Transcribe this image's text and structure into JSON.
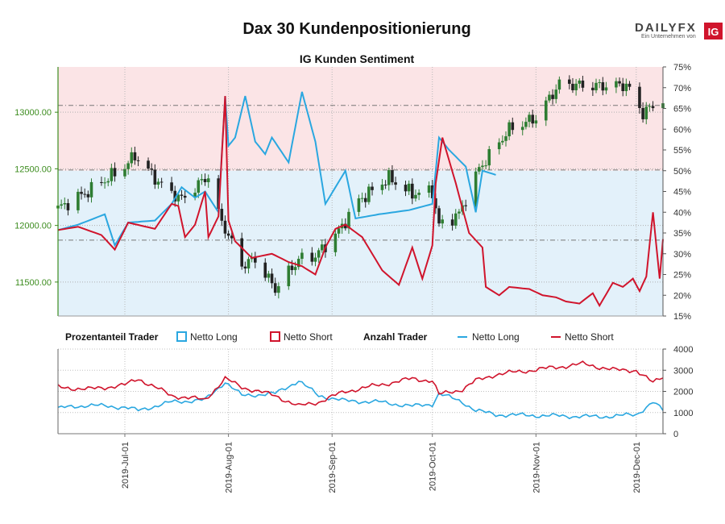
{
  "header": {
    "title": "Dax 30 Kundenpositionierung",
    "brand_name": "DAILYFX",
    "brand_sub": "Ein Unternehmen von",
    "brand_badge": "IG"
  },
  "colors": {
    "long": "#2aa7e0",
    "short": "#d0142c",
    "up_candle": "#2e7d32",
    "down_candle": "#222222",
    "left_axis": "#3c8c1e",
    "bg_short": "#fbe4e6",
    "bg_long": "#e3f1fa"
  },
  "chart_data": [
    {
      "type": "candlestick",
      "title": "IG Kunden Sentiment",
      "ylim_price": [
        11200,
        13400
      ],
      "ylim_percent": [
        15,
        75
      ],
      "price_ticks": [
        "11500.00",
        "12000.00",
        "12500.00",
        "13000.00"
      ],
      "price_tick_values": [
        11500,
        12000,
        12500,
        13000
      ],
      "percent_ticks": [
        "15%",
        "20%",
        "25%",
        "30%",
        "35%",
        "40%",
        "45%",
        "50%",
        "55%",
        "60%",
        "65%",
        "70%",
        "75%"
      ],
      "percent_tick_values": [
        15,
        20,
        25,
        30,
        35,
        40,
        45,
        50,
        55,
        60,
        65,
        70,
        75
      ],
      "dashed_levels_price": [
        12490,
        13060,
        11870
      ],
      "x_start": "2019-06-11",
      "x_end": "2019-12-09",
      "close_anchors": [
        [
          "2019-06-11",
          12150
        ],
        [
          "2019-06-20",
          12300
        ],
        [
          "2019-07-01",
          12520
        ],
        [
          "2019-07-04",
          12620
        ],
        [
          "2019-07-12",
          12350
        ],
        [
          "2019-07-18",
          12230
        ],
        [
          "2019-07-26",
          12440
        ],
        [
          "2019-07-29",
          12100
        ],
        [
          "2019-08-05",
          11650
        ],
        [
          "2019-08-09",
          11700
        ],
        [
          "2019-08-15",
          11440
        ],
        [
          "2019-08-22",
          11700
        ],
        [
          "2019-08-27",
          11730
        ],
        [
          "2019-09-03",
          11950
        ],
        [
          "2019-09-09",
          12220
        ],
        [
          "2019-09-18",
          12420
        ],
        [
          "2019-09-25",
          12280
        ],
        [
          "2019-10-01",
          12300
        ],
        [
          "2019-10-03",
          12000
        ],
        [
          "2019-10-09",
          12100
        ],
        [
          "2019-10-15",
          12500
        ],
        [
          "2019-10-24",
          12850
        ],
        [
          "2019-11-01",
          12950
        ],
        [
          "2019-11-08",
          13250
        ],
        [
          "2019-11-18",
          13230
        ],
        [
          "2019-11-28",
          13240
        ],
        [
          "2019-12-03",
          12990
        ],
        [
          "2019-12-09",
          13120
        ]
      ],
      "percent_long_anchors": [
        [
          "2019-06-11",
          35.7
        ],
        [
          "2019-06-17",
          37.0
        ],
        [
          "2019-06-25",
          39.5
        ],
        [
          "2019-06-28",
          32.0
        ],
        [
          "2019-07-02",
          37.5
        ],
        [
          "2019-07-10",
          38.0
        ],
        [
          "2019-07-15",
          42.0
        ],
        [
          "2019-07-18",
          46.0
        ],
        [
          "2019-07-22",
          43.5
        ],
        [
          "2019-07-25",
          45.0
        ],
        [
          "2019-07-29",
          40.0
        ],
        [
          "2019-07-31",
          68.0
        ],
        [
          "2019-08-01",
          56.0
        ],
        [
          "2019-08-03",
          58.0
        ],
        [
          "2019-08-06",
          68.0
        ],
        [
          "2019-08-09",
          57.0
        ],
        [
          "2019-08-12",
          54.0
        ],
        [
          "2019-08-14",
          58.0
        ],
        [
          "2019-08-19",
          52.0
        ],
        [
          "2019-08-23",
          69.0
        ],
        [
          "2019-08-27",
          57.0
        ],
        [
          "2019-08-30",
          42.0
        ],
        [
          "2019-09-02",
          46.0
        ],
        [
          "2019-09-05",
          50.0
        ],
        [
          "2019-09-08",
          38.5
        ],
        [
          "2019-09-15",
          39.5
        ],
        [
          "2019-09-24",
          40.5
        ],
        [
          "2019-10-01",
          42.0
        ],
        [
          "2019-10-03",
          58.0
        ],
        [
          "2019-10-06",
          55.0
        ],
        [
          "2019-10-11",
          51.0
        ],
        [
          "2019-10-14",
          40.0
        ],
        [
          "2019-10-16",
          50.0
        ],
        [
          "2019-10-20",
          49.0
        ]
      ],
      "percent_short_anchors": [
        [
          "2019-06-11",
          35.7
        ],
        [
          "2019-06-17",
          36.5
        ],
        [
          "2019-06-24",
          34.5
        ],
        [
          "2019-06-28",
          31.0
        ],
        [
          "2019-07-02",
          37.5
        ],
        [
          "2019-07-10",
          36.0
        ],
        [
          "2019-07-15",
          42.0
        ],
        [
          "2019-07-17",
          41.5
        ],
        [
          "2019-07-19",
          34.0
        ],
        [
          "2019-07-22",
          37.0
        ],
        [
          "2019-07-25",
          45.0
        ],
        [
          "2019-07-26",
          34.0
        ],
        [
          "2019-07-29",
          39.0
        ],
        [
          "2019-07-31",
          68.0
        ],
        [
          "2019-08-01",
          38.0
        ],
        [
          "2019-08-03",
          33.0
        ],
        [
          "2019-08-08",
          29.0
        ],
        [
          "2019-08-14",
          30.0
        ],
        [
          "2019-08-19",
          28.0
        ],
        [
          "2019-08-23",
          27.0
        ],
        [
          "2019-08-27",
          25.0
        ],
        [
          "2019-08-30",
          31.5
        ],
        [
          "2019-09-02",
          36.0
        ],
        [
          "2019-09-05",
          37.0
        ],
        [
          "2019-09-10",
          34.0
        ],
        [
          "2019-09-16",
          26.0
        ],
        [
          "2019-09-21",
          22.5
        ],
        [
          "2019-09-25",
          31.5
        ],
        [
          "2019-09-28",
          24.0
        ],
        [
          "2019-10-01",
          32.0
        ],
        [
          "2019-10-02",
          47.0
        ],
        [
          "2019-10-04",
          58.0
        ],
        [
          "2019-10-08",
          47.0
        ],
        [
          "2019-10-12",
          35.0
        ],
        [
          "2019-10-16",
          31.5
        ],
        [
          "2019-10-17",
          22.0
        ],
        [
          "2019-10-21",
          20.0
        ],
        [
          "2019-10-24",
          22.0
        ],
        [
          "2019-10-30",
          21.5
        ],
        [
          "2019-11-03",
          20.0
        ],
        [
          "2019-11-07",
          19.5
        ],
        [
          "2019-11-10",
          18.5
        ],
        [
          "2019-11-14",
          18.0
        ],
        [
          "2019-11-18",
          20.5
        ],
        [
          "2019-11-20",
          17.5
        ],
        [
          "2019-11-24",
          23.0
        ],
        [
          "2019-11-27",
          22.0
        ],
        [
          "2019-11-30",
          24.0
        ],
        [
          "2019-12-02",
          21.0
        ],
        [
          "2019-12-04",
          24.5
        ],
        [
          "2019-12-06",
          40.0
        ],
        [
          "2019-12-08",
          24.0
        ],
        [
          "2019-12-09",
          33.5
        ]
      ]
    },
    {
      "type": "line",
      "legend": [
        {
          "group": "Prozentanteil Trader",
          "items": [
            "Netto Long",
            "Netto Short"
          ],
          "style": "box"
        },
        {
          "group": "Anzahl Trader",
          "items": [
            "Netto Long",
            "Netto Short"
          ],
          "style": "line"
        }
      ],
      "ylim": [
        0,
        4000
      ],
      "y_ticks": [
        "0",
        "1000",
        "2000",
        "3000",
        "4000"
      ],
      "y_tick_values": [
        0,
        1000,
        2000,
        3000,
        4000
      ],
      "x_tick_labels": [
        "2019-Jul-01",
        "2019-Aug-01",
        "2019-Sep-01",
        "2019-Oct-01",
        "2019-Nov-01",
        "2019-Dec-01"
      ],
      "x_tick_dates": [
        "2019-07-01",
        "2019-08-01",
        "2019-09-01",
        "2019-10-01",
        "2019-11-01",
        "2019-12-01"
      ],
      "long_anchors": [
        [
          "2019-06-11",
          1200
        ],
        [
          "2019-06-20",
          1350
        ],
        [
          "2019-07-01",
          1250
        ],
        [
          "2019-07-05",
          1100
        ],
        [
          "2019-07-15",
          1500
        ],
        [
          "2019-07-25",
          1600
        ],
        [
          "2019-07-31",
          2450
        ],
        [
          "2019-08-05",
          1800
        ],
        [
          "2019-08-15",
          1900
        ],
        [
          "2019-08-22",
          2500
        ],
        [
          "2019-08-28",
          1800
        ],
        [
          "2019-09-05",
          1550
        ],
        [
          "2019-09-15",
          1500
        ],
        [
          "2019-09-25",
          1300
        ],
        [
          "2019-10-01",
          1400
        ],
        [
          "2019-10-03",
          1900
        ],
        [
          "2019-10-10",
          1500
        ],
        [
          "2019-10-14",
          1100
        ],
        [
          "2019-10-20",
          900
        ],
        [
          "2019-11-05",
          850
        ],
        [
          "2019-11-20",
          800
        ],
        [
          "2019-12-01",
          900
        ],
        [
          "2019-12-06",
          1500
        ],
        [
          "2019-12-09",
          1100
        ]
      ],
      "short_anchors": [
        [
          "2019-06-11",
          2200
        ],
        [
          "2019-06-20",
          2100
        ],
        [
          "2019-07-01",
          2300
        ],
        [
          "2019-07-05",
          2600
        ],
        [
          "2019-07-15",
          1800
        ],
        [
          "2019-07-25",
          1600
        ],
        [
          "2019-07-31",
          2600
        ],
        [
          "2019-08-05",
          2200
        ],
        [
          "2019-08-15",
          1800
        ],
        [
          "2019-08-22",
          1300
        ],
        [
          "2019-08-28",
          1500
        ],
        [
          "2019-09-05",
          2000
        ],
        [
          "2019-09-15",
          2300
        ],
        [
          "2019-09-25",
          2600
        ],
        [
          "2019-10-01",
          2500
        ],
        [
          "2019-10-03",
          1850
        ],
        [
          "2019-10-10",
          2100
        ],
        [
          "2019-10-14",
          2500
        ],
        [
          "2019-10-20",
          2800
        ],
        [
          "2019-11-05",
          3100
        ],
        [
          "2019-11-15",
          3300
        ],
        [
          "2019-11-25",
          3000
        ],
        [
          "2019-12-01",
          3000
        ],
        [
          "2019-12-06",
          2400
        ],
        [
          "2019-12-09",
          2700
        ]
      ]
    }
  ]
}
